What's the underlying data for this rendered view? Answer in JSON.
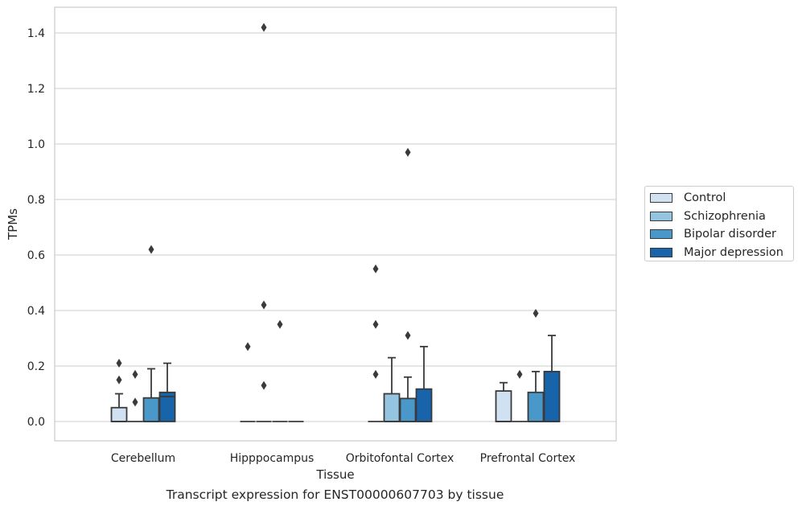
{
  "chart_data": {
    "type": "box",
    "caption": "Transcript expression for ENST00000607703 by tissue",
    "xlabel": "Tissue",
    "ylabel": "TPMs",
    "ylim": [
      -0.07,
      1.49
    ],
    "yticks": [
      0.0,
      0.2,
      0.4,
      0.6,
      0.8,
      1.0,
      1.2,
      1.4
    ],
    "ytick_labels": [
      "0.0",
      "0.2",
      "0.4",
      "0.6",
      "0.8",
      "1.0",
      "1.2",
      "1.4"
    ],
    "grid": true,
    "legend_position": "right-center",
    "categories": [
      "Cerebellum",
      "Hipppocampus",
      "Orbitofontal Cortex",
      "Prefrontal Cortex"
    ],
    "series": [
      {
        "name": "Control",
        "color": "#d0e1f2",
        "boxes": [
          {
            "q1": 0.0,
            "median": 0.0,
            "q3": 0.05,
            "whisker_low": 0.0,
            "whisker_high": 0.1,
            "outliers": [
              0.15,
              0.21
            ]
          },
          {
            "q1": 0.0,
            "median": 0.0,
            "q3": 0.0,
            "whisker_low": 0.0,
            "whisker_high": 0.0,
            "outliers": [
              0.27
            ]
          },
          {
            "q1": 0.0,
            "median": 0.0,
            "q3": 0.0,
            "whisker_low": 0.0,
            "whisker_high": 0.0,
            "outliers": [
              0.17,
              0.35,
              0.55
            ]
          },
          {
            "q1": 0.0,
            "median": 0.0,
            "q3": 0.11,
            "whisker_low": 0.0,
            "whisker_high": 0.14,
            "outliers": []
          }
        ]
      },
      {
        "name": "Schizophrenia",
        "color": "#94c4df",
        "boxes": [
          {
            "q1": 0.0,
            "median": 0.0,
            "q3": 0.0,
            "whisker_low": 0.0,
            "whisker_high": 0.0,
            "outliers": [
              0.07,
              0.17
            ]
          },
          {
            "q1": 0.0,
            "median": 0.0,
            "q3": 0.0,
            "whisker_low": 0.0,
            "whisker_high": 0.0,
            "outliers": [
              0.13,
              0.42,
              1.42
            ]
          },
          {
            "q1": 0.0,
            "median": 0.0,
            "q3": 0.1,
            "whisker_low": 0.0,
            "whisker_high": 0.23,
            "outliers": []
          },
          {
            "q1": 0.0,
            "median": 0.0,
            "q3": 0.0,
            "whisker_low": 0.0,
            "whisker_high": 0.0,
            "outliers": [
              0.17
            ]
          }
        ]
      },
      {
        "name": "Bipolar disorder",
        "color": "#4a98c9",
        "boxes": [
          {
            "q1": 0.0,
            "median": 0.0,
            "q3": 0.085,
            "whisker_low": 0.0,
            "whisker_high": 0.19,
            "outliers": [
              0.62
            ]
          },
          {
            "q1": 0.0,
            "median": 0.0,
            "q3": 0.0,
            "whisker_low": 0.0,
            "whisker_high": 0.0,
            "outliers": [
              0.35
            ]
          },
          {
            "q1": 0.0,
            "median": 0.0,
            "q3": 0.083,
            "whisker_low": 0.0,
            "whisker_high": 0.16,
            "outliers": [
              0.31,
              0.97
            ]
          },
          {
            "q1": 0.0,
            "median": 0.0,
            "q3": 0.105,
            "whisker_low": 0.0,
            "whisker_high": 0.18,
            "outliers": [
              0.39
            ]
          }
        ]
      },
      {
        "name": "Major depression",
        "color": "#1764ab",
        "boxes": [
          {
            "q1": 0.0,
            "median": 0.09,
            "q3": 0.105,
            "whisker_low": 0.0,
            "whisker_high": 0.21,
            "outliers": []
          },
          {
            "q1": 0.0,
            "median": 0.0,
            "q3": 0.0,
            "whisker_low": 0.0,
            "whisker_high": 0.0,
            "outliers": []
          },
          {
            "q1": 0.0,
            "median": 0.0,
            "q3": 0.117,
            "whisker_low": 0.0,
            "whisker_high": 0.27,
            "outliers": []
          },
          {
            "q1": 0.0,
            "median": 0.0,
            "q3": 0.18,
            "whisker_low": 0.0,
            "whisker_high": 0.31,
            "outliers": []
          }
        ]
      }
    ]
  }
}
